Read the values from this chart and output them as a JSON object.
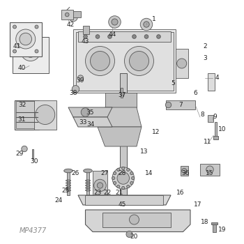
{
  "title": "",
  "watermark": "MP4377",
  "bg_color": "#ffffff",
  "line_color": "#555555",
  "label_color": "#222222",
  "label_fontsize": 6.5,
  "watermark_fontsize": 7,
  "fig_width": 3.5,
  "fig_height": 3.5,
  "dpi": 100
}
